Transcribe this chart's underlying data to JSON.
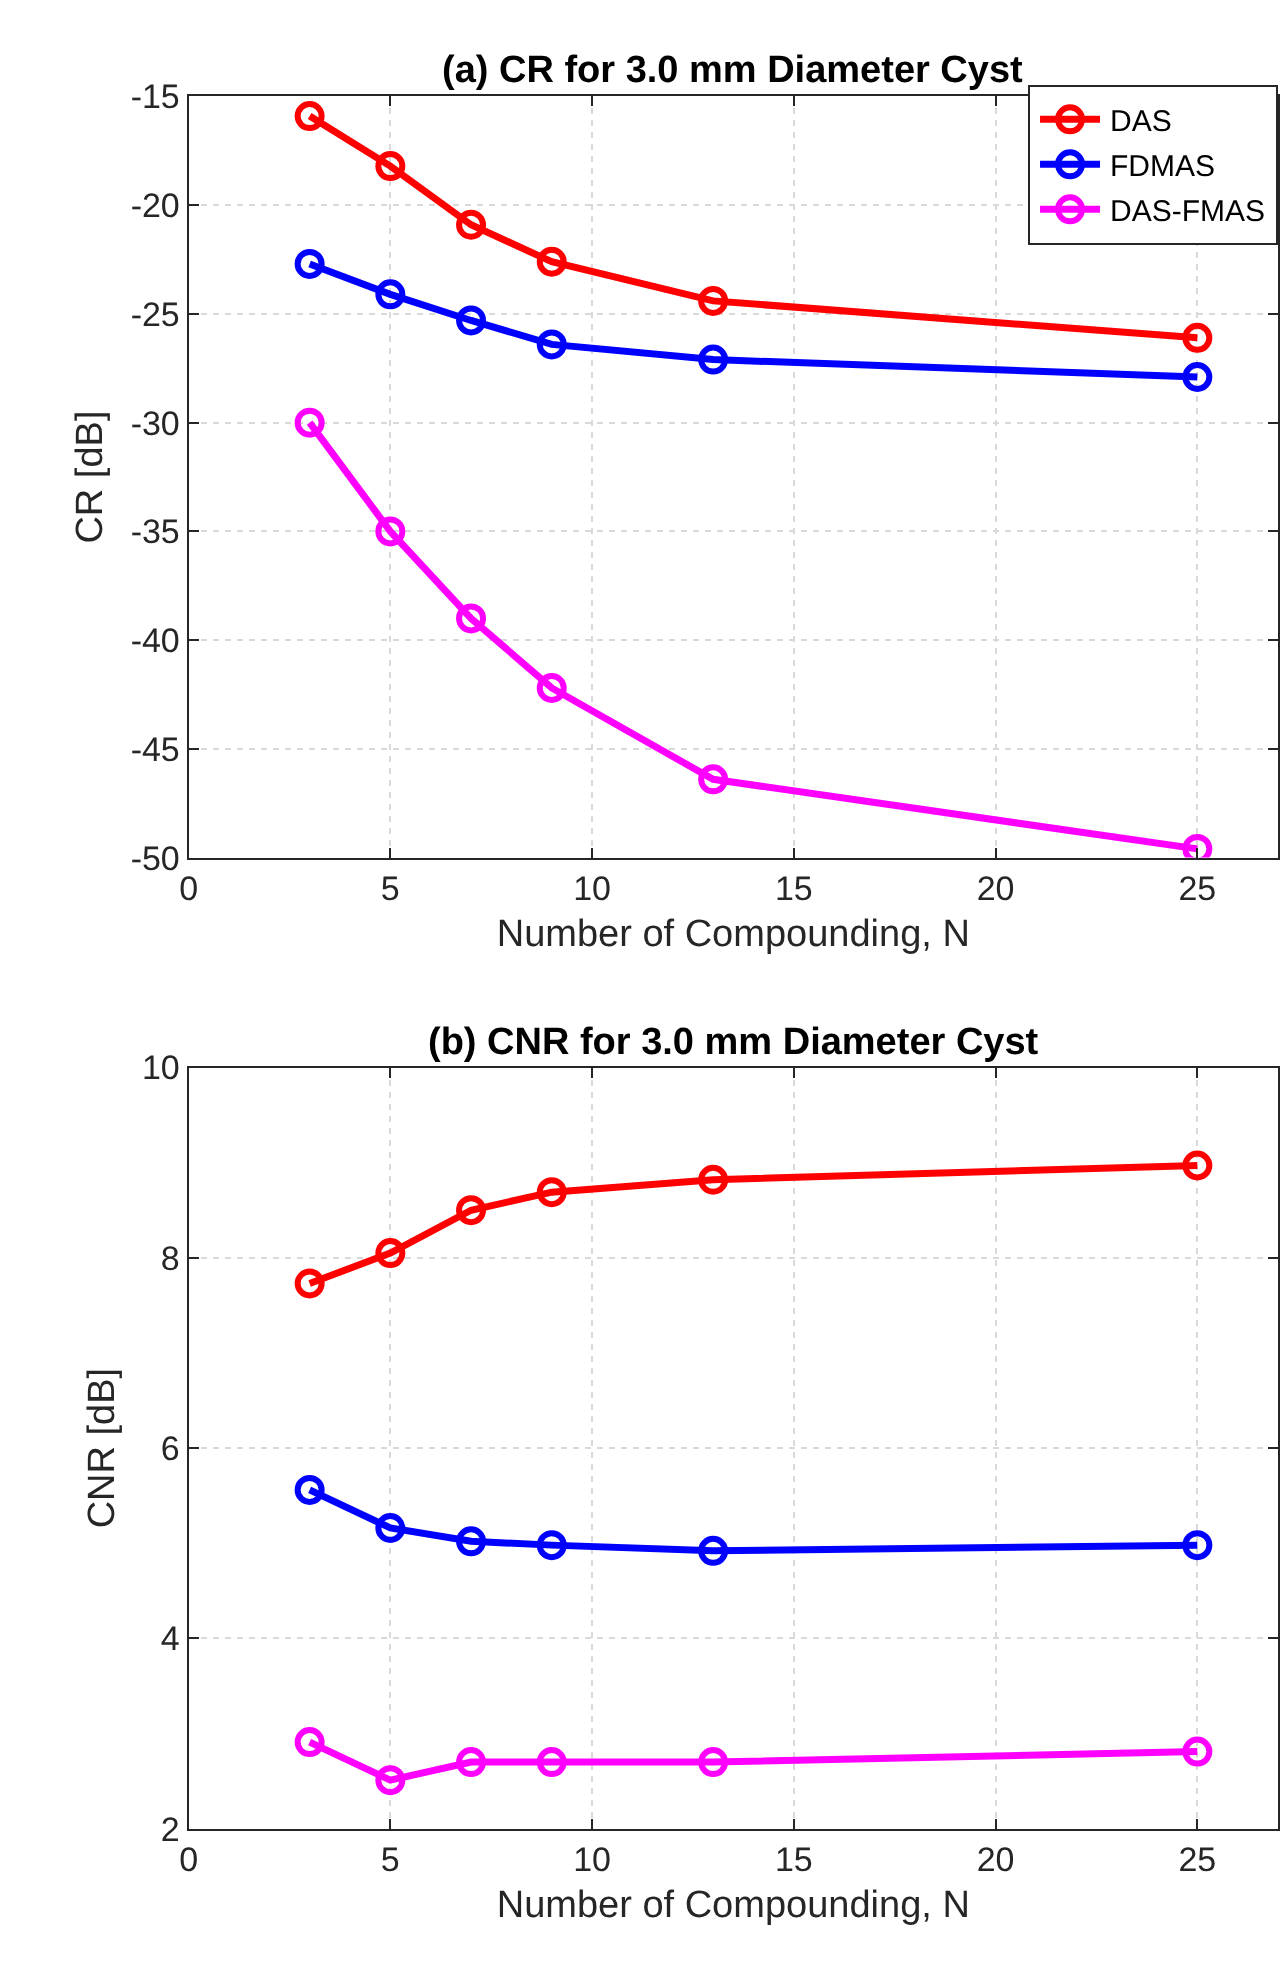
{
  "chart_data": [
    {
      "type": "line",
      "title": "(a) CR for 3.0 mm Diameter Cyst",
      "xlabel": "Number of Compounding, N",
      "ylabel": "CR [dB]",
      "x": [
        3,
        5,
        7,
        9,
        13,
        25
      ],
      "xlim": [
        0,
        27
      ],
      "xticks": [
        0,
        5,
        10,
        15,
        20,
        25
      ],
      "ylim": [
        -50,
        -15
      ],
      "yticks": [
        -50,
        -45,
        -40,
        -35,
        -30,
        -25,
        -20,
        -15
      ],
      "grid": true,
      "legend": "top right",
      "marker": "circle",
      "line_style": "solid",
      "series": [
        {
          "name": "DAS",
          "color": "#ff0000",
          "values": [
            -15.9,
            -18.2,
            -20.9,
            -22.6,
            -24.4,
            -26.1
          ]
        },
        {
          "name": "FDMAS",
          "color": "#0000ff",
          "values": [
            -22.7,
            -24.1,
            -25.3,
            -26.4,
            -27.1,
            -27.9
          ]
        },
        {
          "name": "DAS-FMAS",
          "color": "#ff00ff",
          "values": [
            -30.0,
            -35.0,
            -39.0,
            -42.2,
            -46.4,
            -49.6
          ]
        }
      ]
    },
    {
      "type": "line",
      "title": "(b) CNR for 3.0 mm Diameter Cyst",
      "xlabel": "Number of Compounding, N",
      "ylabel": "CNR [dB]",
      "x": [
        3,
        5,
        7,
        9,
        13,
        25
      ],
      "xlim": [
        0,
        27
      ],
      "xticks": [
        0,
        5,
        10,
        15,
        20,
        25
      ],
      "ylim": [
        2,
        10
      ],
      "yticks": [
        2,
        4,
        6,
        8,
        10
      ],
      "grid": true,
      "marker": "circle",
      "line_style": "solid",
      "series": [
        {
          "color": "#ff0000",
          "values": [
            7.73,
            8.05,
            8.5,
            8.69,
            8.82,
            8.97
          ]
        },
        {
          "color": "#0000ff",
          "values": [
            5.56,
            5.16,
            5.02,
            4.98,
            4.92,
            4.98
          ]
        },
        {
          "color": "#ff00ff",
          "values": [
            2.91,
            2.51,
            2.7,
            2.7,
            2.7,
            2.81
          ]
        }
      ]
    }
  ]
}
